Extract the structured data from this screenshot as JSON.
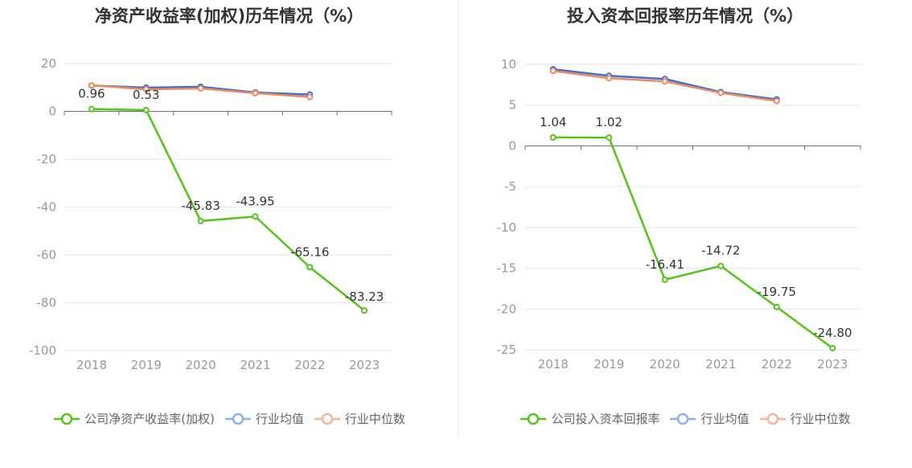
{
  "chart_data": [
    {
      "type": "line",
      "title": "净资产收益率(加权)历年情况（%）",
      "categories": [
        "2018",
        "2019",
        "2020",
        "2021",
        "2022",
        "2023"
      ],
      "ylim": [
        -100,
        20
      ],
      "yticks": [
        "20",
        "0",
        "-20",
        "-40",
        "-60",
        "-80",
        "-100"
      ],
      "yticks_values": [
        20,
        0,
        -20,
        -40,
        -60,
        -80,
        -100
      ],
      "series": [
        {
          "name": "公司净资产收益率(加权)",
          "color": "#52c41a",
          "values": [
            0.96,
            0.53,
            -45.83,
            -43.95,
            -65.16,
            -83.23
          ],
          "labels": [
            "0.96",
            "0.53",
            "-45.83",
            "-43.95",
            "-65.16",
            "-83.23"
          ]
        },
        {
          "name": "行业均值",
          "color": "#3b6fd6",
          "legend_color": "#8fb0ee",
          "values": [
            10.8,
            9.9,
            10.3,
            7.9,
            7.0,
            null
          ]
        },
        {
          "name": "行业中位数",
          "color": "#f08a5d",
          "legend_color": "#f6b49a",
          "values": [
            10.9,
            9.2,
            9.6,
            7.6,
            6.0,
            null
          ]
        }
      ],
      "grid": true,
      "legend": "bottom"
    },
    {
      "type": "line",
      "title": "投入资本回报率历年情况（%）",
      "categories": [
        "2018",
        "2019",
        "2020",
        "2021",
        "2022",
        "2023"
      ],
      "ylim": [
        -25,
        10
      ],
      "yticks": [
        "10",
        "5",
        "0",
        "-5",
        "-10",
        "-15",
        "-20",
        "-25"
      ],
      "yticks_values": [
        10,
        5,
        0,
        -5,
        -10,
        -15,
        -20,
        -25
      ],
      "series": [
        {
          "name": "公司投入资本回报率",
          "color": "#52c41a",
          "values": [
            1.04,
            1.02,
            -16.41,
            -14.72,
            -19.75,
            -24.8
          ],
          "labels": [
            "1.04",
            "1.02",
            "-16.41",
            "-14.72",
            "-19.75",
            "-24.80"
          ]
        },
        {
          "name": "行业均值",
          "color": "#3b6fd6",
          "legend_color": "#8fb0ee",
          "values": [
            9.4,
            8.6,
            8.2,
            6.6,
            5.7,
            null
          ]
        },
        {
          "name": "行业中位数",
          "color": "#f08a5d",
          "legend_color": "#f6b49a",
          "values": [
            9.2,
            8.3,
            7.9,
            6.5,
            5.5,
            null
          ]
        }
      ],
      "grid": true,
      "legend": "bottom"
    }
  ]
}
